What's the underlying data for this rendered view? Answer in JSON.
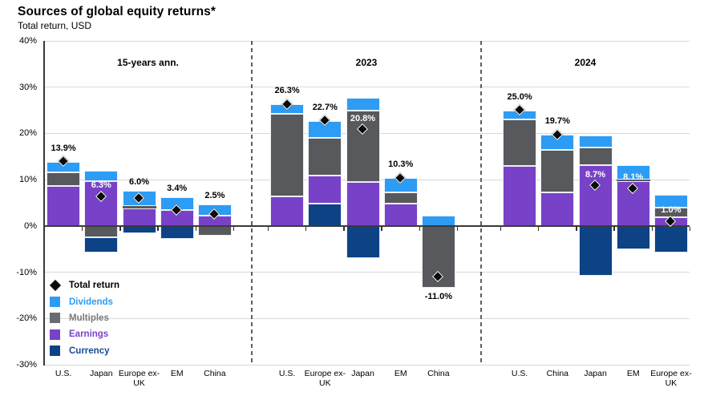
{
  "header": {
    "title": "Sources of global equity returns*",
    "subtitle": "Total return, USD"
  },
  "chart_data": {
    "type": "bar",
    "variant": "stacked-bar-with-total-markers",
    "title": "Sources of global equity returns*",
    "subtitle": "Total return, USD",
    "unit": "%",
    "ylim": [
      -30,
      40
    ],
    "grid": true,
    "yticks": [
      {
        "value": 40,
        "label": "40%"
      },
      {
        "value": 30,
        "label": "30%"
      },
      {
        "value": 20,
        "label": "20%"
      },
      {
        "value": 10,
        "label": "10%"
      },
      {
        "value": 0,
        "label": "0%"
      },
      {
        "value": -10,
        "label": "-10%"
      },
      {
        "value": -20,
        "label": "-20%"
      },
      {
        "value": -30,
        "label": "-30%"
      }
    ],
    "colors": {
      "dividends": "#2D9CF4",
      "multiples": "#58595C",
      "earnings": "#7842C8",
      "currency": "#0D4285"
    },
    "legend": {
      "position": "bottom-left",
      "items": [
        {
          "key": "total",
          "label": "Total return",
          "shape": "diamond",
          "color": "#0a0a0a",
          "text_color": "#000000"
        },
        {
          "key": "dividends",
          "label": "Dividends",
          "shape": "square",
          "color": "#2D9CF4",
          "text_color": "#2D9CF4"
        },
        {
          "key": "multiples",
          "label": "Multiples",
          "shape": "square",
          "color": "#6A6B6E",
          "text_color": "#7A7B7E"
        },
        {
          "key": "earnings",
          "label": "Earnings",
          "shape": "square",
          "color": "#7842C8",
          "text_color": "#7842C8"
        },
        {
          "key": "currency",
          "label": "Currency",
          "shape": "square",
          "color": "#0D4285",
          "text_color": "#174A96"
        }
      ]
    },
    "panels": [
      {
        "title": "15-years ann.",
        "bars": [
          {
            "category": "U.S.",
            "total": 13.9,
            "label": "13.9%",
            "label_style": "black-above",
            "segments": [
              {
                "name": "earnings",
                "value": 8.7
              },
              {
                "name": "multiples",
                "value": 2.9
              },
              {
                "name": "dividends",
                "value": 2.3
              }
            ]
          },
          {
            "category": "Japan",
            "total": 6.3,
            "label": "6.3%",
            "label_style": "white-inside",
            "segments": [
              {
                "name": "earnings",
                "value": 9.6
              },
              {
                "name": "dividends",
                "value": 2.4
              },
              {
                "name": "multiples",
                "value": -2.4
              },
              {
                "name": "currency",
                "value": -3.3
              }
            ]
          },
          {
            "category": "Europe ex-UK",
            "total": 6.0,
            "label": "6.0%",
            "label_style": "black-above",
            "segments": [
              {
                "name": "earnings",
                "value": 3.8
              },
              {
                "name": "multiples",
                "value": 0.5
              },
              {
                "name": "dividends",
                "value": 3.3
              },
              {
                "name": "currency",
                "value": -1.6
              }
            ]
          },
          {
            "category": "EM",
            "total": 3.4,
            "label": "3.4%",
            "label_style": "black-above",
            "segments": [
              {
                "name": "earnings",
                "value": 3.5
              },
              {
                "name": "dividends",
                "value": 2.7
              },
              {
                "name": "currency",
                "value": -2.8
              }
            ]
          },
          {
            "category": "China",
            "total": 2.5,
            "label": "2.5%",
            "label_style": "black-above",
            "segments": [
              {
                "name": "earnings",
                "value": 2.3
              },
              {
                "name": "dividends",
                "value": 2.3
              },
              {
                "name": "multiples",
                "value": -2.1
              }
            ]
          }
        ]
      },
      {
        "title": "2023",
        "bars": [
          {
            "category": "U.S.",
            "total": 26.3,
            "label": "26.3%",
            "label_style": "black-above",
            "segments": [
              {
                "name": "earnings",
                "value": 6.4
              },
              {
                "name": "multiples",
                "value": 17.8
              },
              {
                "name": "dividends",
                "value": 2.1
              }
            ]
          },
          {
            "category": "Europe ex-UK",
            "total": 22.7,
            "label": "22.7%",
            "label_style": "black-above",
            "segments": [
              {
                "name": "currency",
                "value": 4.8
              },
              {
                "name": "earnings",
                "value": 6.1
              },
              {
                "name": "multiples",
                "value": 8.1
              },
              {
                "name": "dividends",
                "value": 3.7
              }
            ]
          },
          {
            "category": "Japan",
            "total": 20.8,
            "label": "20.8%",
            "label_style": "white-inside",
            "segments": [
              {
                "name": "earnings",
                "value": 9.5
              },
              {
                "name": "multiples",
                "value": 15.4
              },
              {
                "name": "dividends",
                "value": 2.8
              },
              {
                "name": "currency",
                "value": -6.9
              }
            ]
          },
          {
            "category": "EM",
            "total": 10.3,
            "label": "10.3%",
            "label_style": "black-above",
            "segments": [
              {
                "name": "earnings",
                "value": 4.8
              },
              {
                "name": "multiples",
                "value": 2.5
              },
              {
                "name": "dividends",
                "value": 3.0
              }
            ]
          },
          {
            "category": "China",
            "total": -11.0,
            "label": "-11.0%",
            "label_style": "black-below",
            "segments": [
              {
                "name": "dividends",
                "value": 2.3
              },
              {
                "name": "multiples",
                "value": -13.3
              }
            ]
          }
        ]
      },
      {
        "title": "2024",
        "bars": [
          {
            "category": "U.S.",
            "total": 25.0,
            "label": "25.0%",
            "label_style": "black-above",
            "segments": [
              {
                "name": "earnings",
                "value": 12.9
              },
              {
                "name": "multiples",
                "value": 10.2
              },
              {
                "name": "dividends",
                "value": 1.9
              }
            ]
          },
          {
            "category": "China",
            "total": 19.7,
            "label": "19.7%",
            "label_style": "black-above",
            "segments": [
              {
                "name": "earnings",
                "value": 7.2
              },
              {
                "name": "multiples",
                "value": 9.3
              },
              {
                "name": "dividends",
                "value": 3.2
              }
            ]
          },
          {
            "category": "Japan",
            "total": 8.7,
            "label": "8.7%",
            "label_style": "white-inside",
            "segments": [
              {
                "name": "earnings",
                "value": 13.1
              },
              {
                "name": "multiples",
                "value": 3.8
              },
              {
                "name": "dividends",
                "value": 2.6
              },
              {
                "name": "currency",
                "value": -10.8
              }
            ]
          },
          {
            "category": "EM",
            "total": 8.1,
            "label": "8.1%",
            "label_style": "white-inside",
            "segments": [
              {
                "name": "earnings",
                "value": 9.6
              },
              {
                "name": "multiples",
                "value": 0.5
              },
              {
                "name": "dividends",
                "value": 3.0
              },
              {
                "name": "currency",
                "value": -5.0
              }
            ]
          },
          {
            "category": "Europe ex-UK",
            "total": 1.0,
            "label": "1.0%",
            "label_style": "white-inside",
            "segments": [
              {
                "name": "earnings",
                "value": 1.8
              },
              {
                "name": "multiples",
                "value": 2.2
              },
              {
                "name": "dividends",
                "value": 2.7
              },
              {
                "name": "currency",
                "value": -5.7
              }
            ]
          }
        ]
      }
    ]
  }
}
